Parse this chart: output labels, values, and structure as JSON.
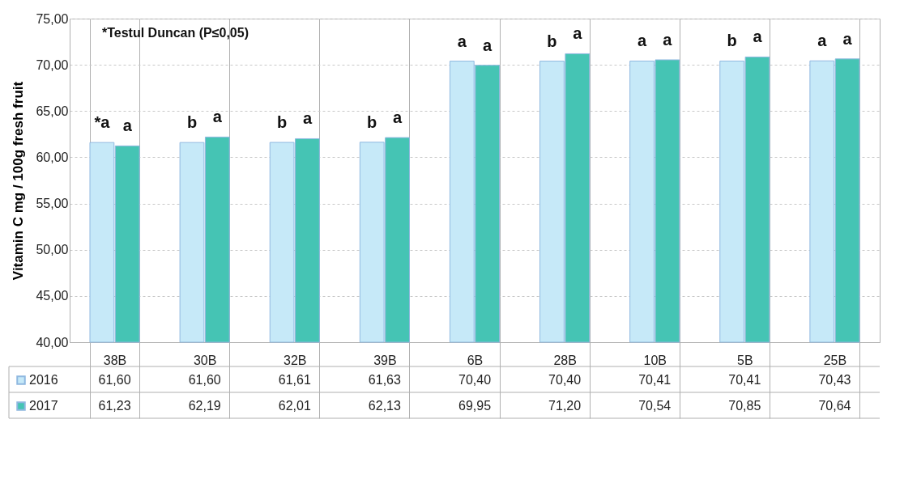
{
  "chart_data": {
    "type": "bar",
    "ylabel": "Vitamin C mg / 100g fresh fruit",
    "categories": [
      "38B",
      "30B",
      "32B",
      "39B",
      "6B",
      "28B",
      "10B",
      "5B",
      "25B"
    ],
    "series": [
      {
        "name": "2016",
        "color": "#c6e9f8",
        "values": [
          61.6,
          61.6,
          61.61,
          61.63,
          70.4,
          70.4,
          70.41,
          70.41,
          70.43
        ],
        "value_labels": [
          "61,60",
          "61,60",
          "61,61",
          "61,63",
          "70,40",
          "70,40",
          "70,41",
          "70,41",
          "70,43"
        ]
      },
      {
        "name": "2017",
        "color": "#45c4b4",
        "values": [
          61.23,
          62.19,
          62.01,
          62.13,
          69.95,
          71.2,
          70.54,
          70.85,
          70.64
        ],
        "value_labels": [
          "61,23",
          "62,19",
          "62,01",
          "62,13",
          "69,95",
          "71,20",
          "70,54",
          "70,85",
          "70,64"
        ]
      }
    ],
    "ylim": [
      40,
      75
    ],
    "yticks": [
      {
        "value": 40,
        "label": "40,00"
      },
      {
        "value": 45,
        "label": "45,00"
      },
      {
        "value": 50,
        "label": "50,00"
      },
      {
        "value": 55,
        "label": "55,00"
      },
      {
        "value": 60,
        "label": "60,00"
      },
      {
        "value": 65,
        "label": "65,00"
      },
      {
        "value": 70,
        "label": "70,00"
      },
      {
        "value": 75,
        "label": "75,00"
      }
    ],
    "grid": true,
    "legend": "bottom left",
    "annotations": [
      "*Testul Duncan (P≤0,05)",
      {
        "text": "*a",
        "x": "38B",
        "y": 61.6
      },
      {
        "text": "a",
        "x": "38B",
        "y": 61.23
      },
      {
        "text": "b",
        "x": "30B",
        "y": 61.6
      },
      {
        "text": "a",
        "x": "30B",
        "y": 62.19
      },
      {
        "text": "b",
        "x": "32B",
        "y": 61.61
      },
      {
        "text": "a",
        "x": "32B",
        "y": 62.01
      },
      {
        "text": "b",
        "x": "39B",
        "y": 61.63
      },
      {
        "text": "a",
        "x": "39B",
        "y": 62.13
      },
      {
        "text": "a",
        "x": "6B",
        "y": 70.4
      },
      {
        "text": "a",
        "x": "6B",
        "y": 69.95
      },
      {
        "text": "b",
        "x": "28B",
        "y": 70.4
      },
      {
        "text": "a",
        "x": "28B",
        "y": 71.2
      },
      {
        "text": "a",
        "x": "10B",
        "y": 70.41
      },
      {
        "text": "a",
        "x": "10B",
        "y": 70.54
      },
      {
        "text": "b",
        "x": "5B",
        "y": 70.41
      },
      {
        "text": "a",
        "x": "5B",
        "y": 70.85
      },
      {
        "text": "a",
        "x": "25B",
        "y": 70.43
      },
      {
        "text": "a",
        "x": "25B",
        "y": 70.64
      }
    ]
  }
}
